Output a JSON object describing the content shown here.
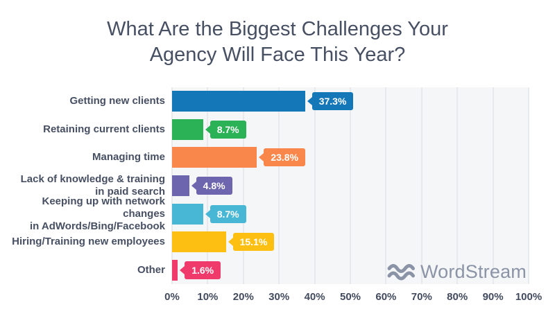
{
  "title_lines": [
    "What Are the Biggest Challenges Your",
    "Agency Will Face This Year?"
  ],
  "chart_data": {
    "type": "bar",
    "orientation": "horizontal",
    "title": "What Are the Biggest Challenges Your Agency Will Face This Year?",
    "categories": [
      "Getting new clients",
      "Retaining current clients",
      "Managing time",
      "Lack of knowledge & training in paid search",
      "Keeping up with network changes in AdWords/Bing/Facebook",
      "Hiring/Training new employees",
      "Other"
    ],
    "category_lines": [
      [
        "Getting new clients"
      ],
      [
        "Retaining current clients"
      ],
      [
        "Managing time"
      ],
      [
        "Lack of knowledge & training",
        "in paid search"
      ],
      [
        "Keeping up with network changes",
        "in AdWords/Bing/Facebook"
      ],
      [
        "Hiring/Training new employees"
      ],
      [
        "Other"
      ]
    ],
    "values": [
      37.3,
      8.7,
      23.8,
      4.8,
      8.7,
      15.1,
      1.6
    ],
    "value_labels": [
      "37.3%",
      "8.7%",
      "23.8%",
      "4.8%",
      "8.7%",
      "15.1%",
      "1.6%"
    ],
    "bar_colors": [
      "#1477b7",
      "#2bb156",
      "#f9874b",
      "#6d65ae",
      "#48b7d5",
      "#fdc012",
      "#f13a6c"
    ],
    "xlabel": "",
    "ylabel": "",
    "xlim": [
      0,
      100
    ],
    "x_ticks": [
      "0%",
      "10%",
      "20%",
      "30%",
      "40%",
      "50%",
      "60%",
      "70%",
      "80%",
      "90%",
      "100%"
    ],
    "grid": "vertical",
    "legend": "none",
    "value_label_style": "callout-on-bar-end"
  },
  "watermark": {
    "brand": "WordStream",
    "icon": "waves-icon",
    "color": "#8b93a6"
  },
  "colors": {
    "title_text": "#474f63",
    "axis_text": "#424b5e",
    "plot_background": "#f5f6f7",
    "gridline": "#e7e9ec",
    "page_background": "#ffffff"
  }
}
